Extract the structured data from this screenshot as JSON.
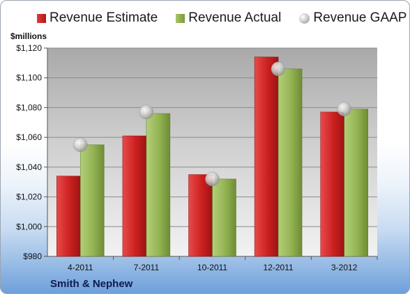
{
  "chart_data": {
    "type": "bar",
    "categories": [
      "4-2011",
      "7-2011",
      "10-2011",
      "12-2011",
      "3-2012"
    ],
    "series": [
      {
        "name": "Revenue Estimate",
        "kind": "bar",
        "color": "#c8201f",
        "values": [
          1034,
          1061,
          1035,
          1114,
          1077
        ]
      },
      {
        "name": "Revenue Actual",
        "kind": "bar",
        "color": "#8fb04f",
        "values": [
          1055,
          1076,
          1032,
          1106,
          1079
        ]
      },
      {
        "name": "Revenue GAAP",
        "kind": "marker",
        "color": "#b0b0b0",
        "values": [
          1055,
          1077,
          1032,
          1106,
          1079
        ]
      }
    ],
    "ylabel": "$millions",
    "ylim": [
      980,
      1120
    ],
    "yticks": [
      "$980",
      "$1,000",
      "$1,020",
      "$1,040",
      "$1,060",
      "$1,080",
      "$1,100",
      "$1,120"
    ],
    "ytick_values": [
      980,
      1000,
      1020,
      1040,
      1060,
      1080,
      1100,
      1120
    ],
    "grid": true,
    "legend": "top"
  },
  "footer": {
    "company": "Smith & Nephew"
  }
}
